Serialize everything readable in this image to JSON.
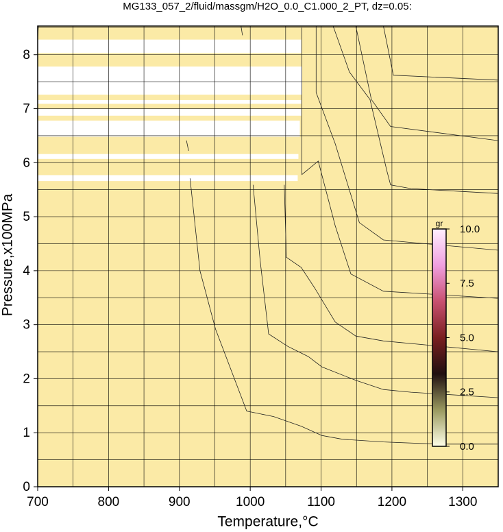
{
  "chart_data": {
    "type": "contour",
    "title": "MG133_057_2/fluid/massgm/H2O_0.0_C1.000_2_PT, dz=0.05:",
    "x_label": "Temperature,°C",
    "y_label": "Pressure,x100MPa",
    "xlim": [
      700,
      1350
    ],
    "ylim": [
      0,
      8.53
    ],
    "xticks": [
      700,
      800,
      900,
      1000,
      1100,
      1200,
      1300
    ],
    "yticks": [
      0,
      1,
      2,
      3,
      4,
      5,
      6,
      7,
      8
    ],
    "xgrid": [
      750,
      800,
      850,
      900,
      950,
      1000,
      1050,
      1100,
      1150,
      1200,
      1250,
      1300
    ],
    "ygrid": [
      0.5,
      1,
      1.5,
      2,
      2.5,
      3,
      3.5,
      4,
      4.5,
      5,
      5.5,
      6,
      6.5,
      7,
      7.5,
      8,
      8.5
    ],
    "fill": "#fbeaa6",
    "line_color": "#222222",
    "masked_regions": [
      {
        "x": [
          700,
          1072
        ],
        "y": [
          8.03,
          8.28
        ]
      },
      {
        "x": [
          700,
          1073
        ],
        "y": [
          7.26,
          7.78
        ]
      },
      {
        "x": [
          700,
          1072
        ],
        "y": [
          7.09,
          7.16
        ]
      },
      {
        "x": [
          700,
          1072
        ],
        "y": [
          6.87,
          7.0
        ]
      },
      {
        "x": [
          700,
          1070
        ],
        "y": [
          6.48,
          6.78
        ]
      },
      {
        "x": [
          700,
          1068
        ],
        "y": [
          6.07,
          6.16
        ]
      },
      {
        "x": [
          700,
          1067
        ],
        "y": [
          5.66,
          5.77
        ]
      }
    ],
    "contours": [
      {
        "x": [
          701,
          700
        ],
        "y": [
          8.53,
          8.3
        ]
      },
      {
        "x": [
          910,
          913
        ],
        "y": [
          6.41,
          6.22
        ]
      },
      {
        "x": [
          915,
          929,
          951,
          995,
          1033,
          1072,
          1101,
          1130,
          1188,
          1265,
          1349
        ],
        "y": [
          5.71,
          4.0,
          2.92,
          1.4,
          1.3,
          1.12,
          0.95,
          0.88,
          0.83,
          0.79,
          0.79
        ]
      },
      {
        "x": [
          987,
          989
        ],
        "y": [
          8.53,
          8.36
        ]
      },
      {
        "x": [
          1004,
          1014,
          1026,
          1053,
          1082,
          1101,
          1149,
          1188,
          1227,
          1349
        ],
        "y": [
          5.59,
          4.19,
          2.83,
          2.6,
          2.41,
          2.22,
          1.97,
          1.8,
          1.75,
          1.65
        ]
      },
      {
        "x": [
          1048,
          1051,
          1072,
          1091,
          1120,
          1149,
          1188,
          1349
        ],
        "y": [
          5.59,
          4.25,
          4.06,
          3.68,
          3.05,
          2.79,
          2.7,
          2.5
        ]
      },
      {
        "x": [
          1073,
          1073,
          1096,
          1120,
          1142,
          1188,
          1349
        ],
        "y": [
          8.51,
          5.78,
          6.03,
          4.83,
          3.94,
          3.62,
          3.49
        ]
      },
      {
        "x": [
          1093,
          1093,
          1120,
          1154,
          1188,
          1349
        ],
        "y": [
          8.53,
          7.3,
          6.35,
          4.89,
          4.57,
          4.38
        ]
      },
      {
        "x": [
          1117,
          1140,
          1169,
          1193,
          1198,
          1227,
          1349
        ],
        "y": [
          8.53,
          7.68,
          7.17,
          5.84,
          5.59,
          5.52,
          5.43
        ]
      },
      {
        "x": [
          1149,
          1171,
          1198,
          1349
        ],
        "y": [
          8.53,
          7.17,
          6.67,
          6.41
        ]
      },
      {
        "x": [
          1188,
          1202,
          1349
        ],
        "y": [
          8.53,
          7.62,
          7.53
        ]
      }
    ],
    "colorbar": {
      "label": "gr",
      "lim": [
        0,
        10
      ],
      "ticks": [
        {
          "value": 0,
          "label": "0.0"
        },
        {
          "value": 2.5,
          "label": "2.5"
        },
        {
          "value": 5,
          "label": "5.0"
        },
        {
          "value": 7.5,
          "label": "7.5"
        },
        {
          "value": 10,
          "label": "10.0"
        }
      ],
      "colors": [
        "#ffffe8",
        "#9a9a60",
        "#201010",
        "#7a2020",
        "#c85070",
        "#f0a0e0",
        "#fff0ff"
      ]
    }
  }
}
